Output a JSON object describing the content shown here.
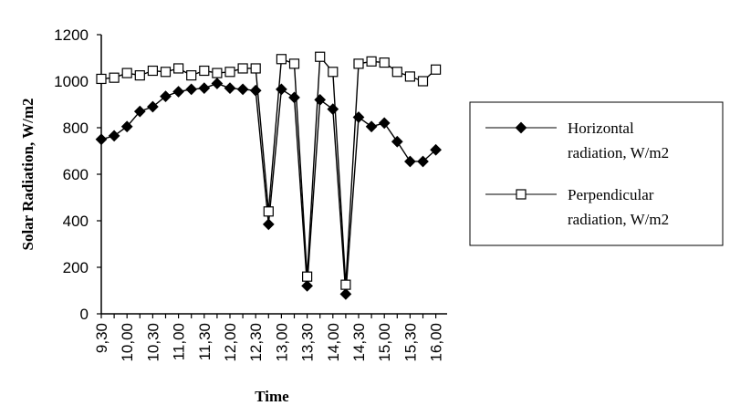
{
  "chart_data": {
    "type": "line",
    "xlabel": "Time",
    "ylabel": "Solar Radiation, W/m2",
    "ylim": [
      0,
      1200
    ],
    "y_ticks": [
      "0",
      "200",
      "400",
      "600",
      "800",
      "1000",
      "1200"
    ],
    "x_tick_labels": [
      "9,30",
      "10,00",
      "10,30",
      "11,00",
      "11,30",
      "12,00",
      "12,30",
      "13,00",
      "13,30",
      "14,00",
      "14,30",
      "15,00",
      "15,30",
      "16,00"
    ],
    "x_count": 27,
    "grid": false,
    "legend_position": "right",
    "series": [
      {
        "name": "Horizontal radiation, W/m2",
        "name_lines": [
          "Horizontal",
          "radiation, W/m2"
        ],
        "marker": "diamond-filled",
        "values": [
          750,
          765,
          805,
          870,
          890,
          935,
          955,
          965,
          970,
          990,
          970,
          965,
          960,
          385,
          965,
          930,
          120,
          920,
          880,
          85,
          845,
          805,
          820,
          740,
          655,
          655,
          705
        ]
      },
      {
        "name": "Perpendicular radiation, W/m2",
        "name_lines": [
          "Perpendicular",
          "radiation, W/m2"
        ],
        "marker": "square-open",
        "values": [
          1010,
          1015,
          1035,
          1025,
          1045,
          1040,
          1055,
          1025,
          1045,
          1035,
          1040,
          1055,
          1055,
          440,
          1095,
          1075,
          160,
          1105,
          1040,
          125,
          1075,
          1085,
          1080,
          1040,
          1020,
          1000,
          1050
        ]
      }
    ]
  }
}
